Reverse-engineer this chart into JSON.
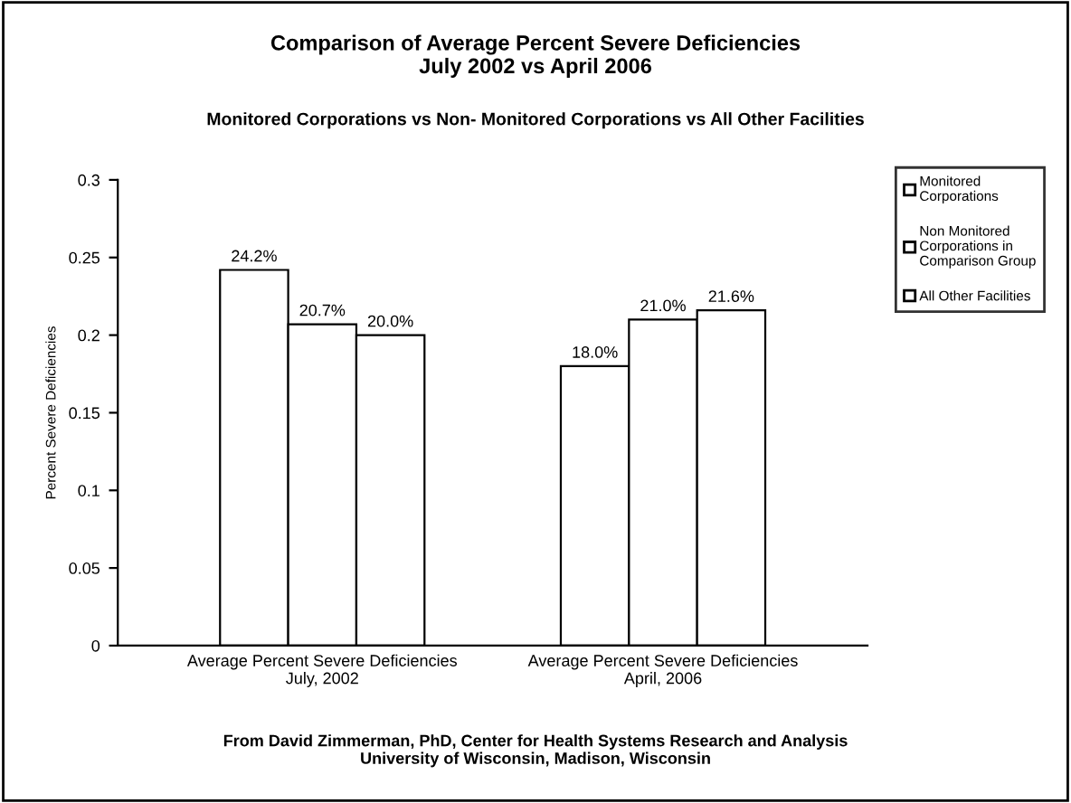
{
  "chart_data": {
    "type": "bar",
    "title": "Comparison of Average Percent Severe Deficiencies\nJuly 2002 vs April 2006",
    "subtitle": "Monitored Corporations vs Non- Monitored Corporations vs All Other Facilities",
    "ylabel": "Percent Severe Deficiencies",
    "categories": [
      "Average Percent Severe Deficiencies July, 2002",
      "Average Percent Severe Deficiencies April, 2006"
    ],
    "series": [
      {
        "name": "Monitored Corporations",
        "color": "#ffffff",
        "values": [
          0.242,
          0.18
        ],
        "value_labels": [
          "24.2%",
          "18.0%"
        ]
      },
      {
        "name": "Non Monitored Corporations in Comparison Group",
        "color": "#ffffff",
        "values": [
          0.207,
          0.21
        ],
        "value_labels": [
          "20.7%",
          "21.0%"
        ]
      },
      {
        "name": "All Other Facilities",
        "color": "#ffffff",
        "values": [
          0.2,
          0.216
        ],
        "value_labels": [
          "20.0%",
          "21.6%"
        ]
      }
    ],
    "ylim": [
      0,
      0.3
    ],
    "yticks": [
      0,
      0.05,
      0.1,
      0.15,
      0.2,
      0.25,
      0.3
    ],
    "grid": false,
    "legend": "top right",
    "annotations": [
      "From David Zimmerman, PhD, Center for Health Systems Research and Analysis\nUniversity of Wisconsin, Madison, Wisconsin"
    ]
  }
}
